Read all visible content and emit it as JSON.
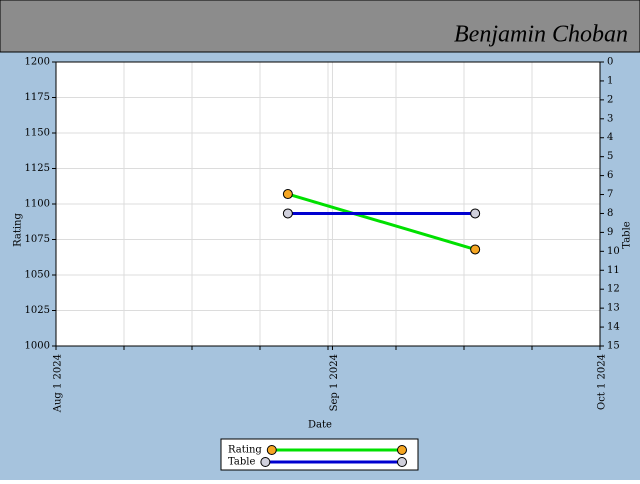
{
  "header": {
    "name": "Benjamin Choban"
  },
  "chart_data": {
    "type": "line",
    "x_label": "Date",
    "y_label": "Rating",
    "y2_label": "Table",
    "x": [
      "2024-08-27",
      "2024-09-17"
    ],
    "xlim": [
      "2024-08-01",
      "2024-10-01"
    ],
    "xticks": [
      {
        "value": "2024-08-01",
        "label": "Aug 1 2024"
      },
      {
        "value": "2024-09-01",
        "label": "Sep 1 2024"
      },
      {
        "value": "2024-10-01",
        "label": "Oct 1 2024"
      }
    ],
    "ylim": [
      1000,
      1200
    ],
    "yticks": [
      1000,
      1025,
      1050,
      1075,
      1100,
      1125,
      1150,
      1175,
      1200
    ],
    "y2lim": [
      15,
      0
    ],
    "y2ticks": [
      0,
      1,
      2,
      3,
      4,
      5,
      6,
      7,
      8,
      9,
      10,
      11,
      12,
      13,
      14,
      15
    ],
    "grid": true,
    "legend": "bottom",
    "series": [
      {
        "name": "Rating",
        "color": "#00e000",
        "marker_color": "#f5a623",
        "values": [
          1107,
          1068
        ]
      },
      {
        "name": "Table",
        "color": "#0000d0",
        "marker_color": "#d0d0dc",
        "axis": "y2",
        "values": [
          8,
          8
        ]
      }
    ]
  }
}
